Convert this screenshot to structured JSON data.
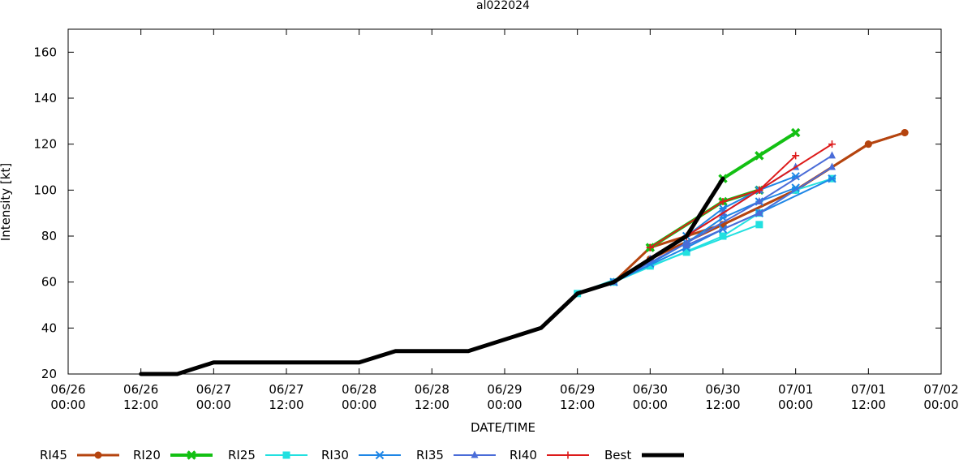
{
  "chart_data": {
    "type": "line",
    "title": "al022024",
    "xlabel": "DATE/TIME",
    "ylabel": "Intensity [kt]",
    "ylim": [
      20,
      170
    ],
    "xlim": [
      "06/26 00:00",
      "07/02 00:00"
    ],
    "grid": false,
    "legend_position": "bottom",
    "yticks": [
      20,
      40,
      60,
      80,
      100,
      120,
      140,
      160
    ],
    "xticks": [
      {
        "date": "06/26",
        "time": "00:00"
      },
      {
        "date": "06/26",
        "time": "12:00"
      },
      {
        "date": "06/27",
        "time": "00:00"
      },
      {
        "date": "06/27",
        "time": "12:00"
      },
      {
        "date": "06/28",
        "time": "00:00"
      },
      {
        "date": "06/28",
        "time": "12:00"
      },
      {
        "date": "06/29",
        "time": "00:00"
      },
      {
        "date": "06/29",
        "time": "12:00"
      },
      {
        "date": "06/30",
        "time": "00:00"
      },
      {
        "date": "06/30",
        "time": "12:00"
      },
      {
        "date": "07/01",
        "time": "00:00"
      },
      {
        "date": "07/01",
        "time": "12:00"
      },
      {
        "date": "07/02",
        "time": "00:00"
      }
    ],
    "series": [
      {
        "name": "RI45",
        "color": "#b5440f",
        "marker": "circle",
        "width": 3,
        "tracks": [
          [
            [
              "06/29 18:00",
              60
            ],
            [
              "06/30 00:00",
              75
            ],
            [
              "06/30 12:00",
              85
            ],
            [
              "07/01 00:00",
              100
            ],
            [
              "07/01 12:00",
              120
            ],
            [
              "07/01 18:00",
              125
            ]
          ],
          [
            [
              "06/29 18:00",
              60
            ],
            [
              "06/30 00:00",
              70
            ],
            [
              "06/30 12:00",
              85
            ],
            [
              "07/01 00:00",
              100
            ],
            [
              "07/01 12:00",
              120
            ],
            [
              "07/01 18:00",
              125
            ]
          ]
        ]
      },
      {
        "name": "RI20",
        "color": "#13c013",
        "marker": "x-cross",
        "width": 4,
        "tracks": [
          [
            [
              "06/30 12:00",
              105
            ],
            [
              "06/30 18:00",
              115
            ],
            [
              "07/01 00:00",
              125
            ]
          ],
          [
            [
              "06/30 00:00",
              75
            ],
            [
              "06/30 12:00",
              95
            ],
            [
              "06/30 18:00",
              100
            ]
          ]
        ]
      },
      {
        "name": "RI25",
        "color": "#22e0e0",
        "marker": "square",
        "width": 2,
        "tracks": [
          [
            [
              "06/29 12:00",
              55
            ],
            [
              "06/30 00:00",
              67
            ],
            [
              "06/30 06:00",
              73
            ],
            [
              "06/30 18:00",
              85
            ]
          ],
          [
            [
              "06/29 18:00",
              60
            ],
            [
              "06/30 12:00",
              80
            ],
            [
              "06/30 18:00",
              90
            ],
            [
              "07/01 00:00",
              100
            ],
            [
              "07/01 06:00",
              105
            ]
          ]
        ]
      },
      {
        "name": "RI30",
        "color": "#1e86e6",
        "marker": "star",
        "width": 2,
        "tracks": [
          [
            [
              "06/29 18:00",
              60
            ],
            [
              "06/30 06:00",
              75
            ],
            [
              "06/30 12:00",
              83
            ],
            [
              "06/30 18:00",
              90
            ],
            [
              "07/01 06:00",
              105
            ]
          ],
          [
            [
              "06/30 00:00",
              68
            ],
            [
              "06/30 06:00",
              77
            ],
            [
              "06/30 12:00",
              88
            ],
            [
              "06/30 18:00",
              95
            ],
            [
              "07/01 00:00",
              101
            ]
          ],
          [
            [
              "06/30 06:00",
              80
            ],
            [
              "06/30 12:00",
              92
            ],
            [
              "06/30 18:00",
              100
            ],
            [
              "07/01 00:00",
              106
            ]
          ]
        ]
      },
      {
        "name": "RI35",
        "color": "#4a6cd8",
        "marker": "triangle",
        "width": 2,
        "tracks": [
          [
            [
              "06/29 18:00",
              60
            ],
            [
              "06/30 06:00",
              77
            ],
            [
              "06/30 18:00",
              95
            ],
            [
              "07/01 06:00",
              115
            ]
          ],
          [
            [
              "06/30 00:00",
              70
            ],
            [
              "06/30 12:00",
              90
            ],
            [
              "06/30 18:00",
              100
            ],
            [
              "07/01 00:00",
              110
            ]
          ],
          [
            [
              "06/30 06:00",
              76
            ],
            [
              "06/30 18:00",
              90
            ],
            [
              "07/01 06:00",
              110
            ]
          ]
        ]
      },
      {
        "name": "RI40",
        "color": "#dd1a1a",
        "marker": "plus",
        "width": 2,
        "tracks": [
          [
            [
              "06/30 00:00",
              75
            ],
            [
              "06/30 12:00",
              95
            ],
            [
              "06/30 18:00",
              100
            ],
            [
              "07/01 00:00",
              115
            ]
          ],
          [
            [
              "06/30 06:00",
              80
            ],
            [
              "06/30 18:00",
              100
            ],
            [
              "07/01 06:00",
              120
            ]
          ]
        ]
      },
      {
        "name": "Best",
        "color": "#000000",
        "marker": "none",
        "width": 5,
        "tracks": [
          [
            [
              "06/26 12:00",
              20
            ],
            [
              "06/26 18:00",
              20
            ],
            [
              "06/27 00:00",
              25
            ],
            [
              "06/28 00:00",
              25
            ],
            [
              "06/28 06:00",
              30
            ],
            [
              "06/28 18:00",
              30
            ],
            [
              "06/29 06:00",
              40
            ],
            [
              "06/29 12:00",
              55
            ],
            [
              "06/29 18:00",
              60
            ],
            [
              "06/30 00:00",
              70
            ],
            [
              "06/30 06:00",
              80
            ],
            [
              "06/30 12:00",
              105
            ]
          ]
        ]
      }
    ]
  }
}
